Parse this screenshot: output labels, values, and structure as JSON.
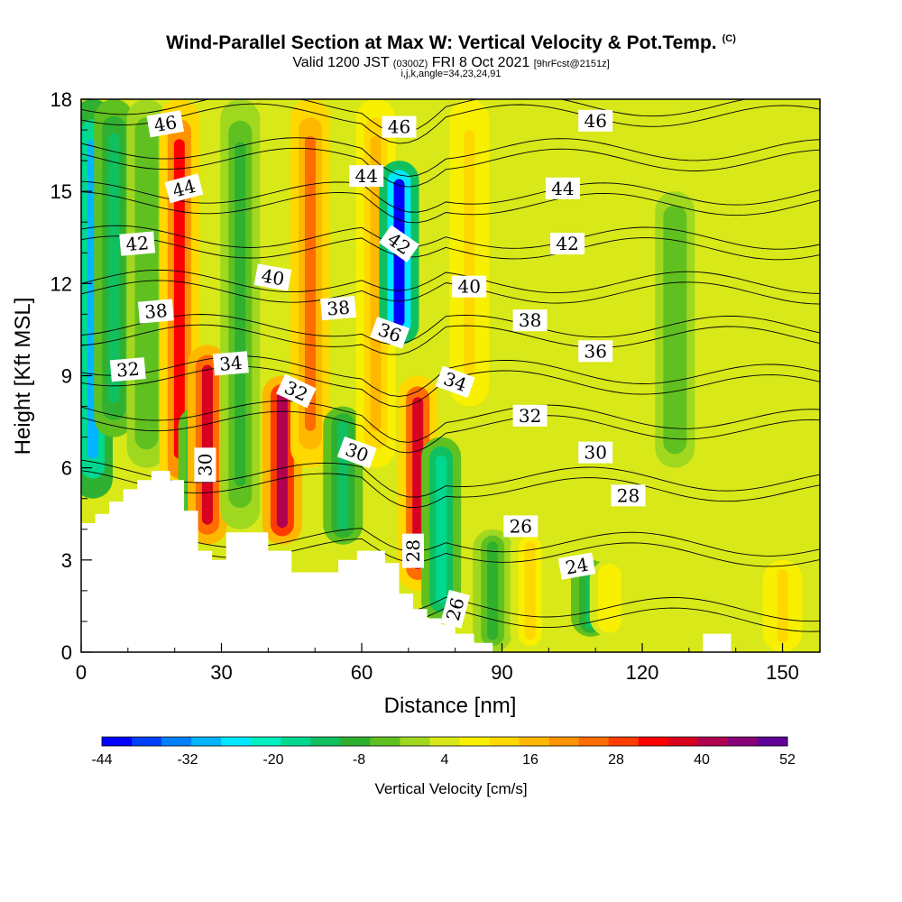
{
  "header": {
    "title": "Wind-Parallel Section at Max W: Vertical Velocity & Pot.Temp.",
    "title_mark": "(C)",
    "valid_prefix": "Valid 1200 JST",
    "utc": "(0300Z)",
    "valid_date": "FRI 8 Oct 2021",
    "forecast": "[9hrFcst@2151z]",
    "params": "i,j,k,angle=34,23,24,91"
  },
  "chart_data": {
    "type": "heatmap",
    "title": "Wind-Parallel Section at Max W: Vertical Velocity & Pot.Temp.",
    "xlabel": "Distance [nm]",
    "ylabel": "Height [Kft MSL]",
    "xlim": [
      0,
      158
    ],
    "ylim": [
      0,
      18
    ],
    "xticks": [
      0,
      30,
      60,
      90,
      120,
      150
    ],
    "yticks": [
      0,
      3,
      6,
      9,
      12,
      15,
      18
    ],
    "colorbar": {
      "label": "Vertical Velocity [cm/s]",
      "tick_labels": [
        "-44",
        "-32",
        "-20",
        "-8",
        "4",
        "16",
        "28",
        "40",
        "52"
      ],
      "colors": [
        "#0000ff",
        "#0040ff",
        "#0080ff",
        "#00b4ff",
        "#00e8ff",
        "#00f0c0",
        "#00d890",
        "#10c060",
        "#30b030",
        "#60c020",
        "#a0d820",
        "#d8e818",
        "#f8f000",
        "#ffd800",
        "#ffb800",
        "#ff9400",
        "#ff6c00",
        "#ff3c00",
        "#ff0000",
        "#d80020",
        "#b00050",
        "#880078",
        "#600098"
      ]
    },
    "background_w": 2,
    "velocity_features": [
      {
        "x": 2.5,
        "w": -30,
        "top": 18,
        "bottom": 5
      },
      {
        "x": 7,
        "w": -12,
        "top": 18,
        "bottom": 7
      },
      {
        "x": 14,
        "w": -6,
        "top": 18,
        "bottom": 6
      },
      {
        "x": 21,
        "w": 32,
        "top": 18,
        "bottom": 5
      },
      {
        "x": 25,
        "w": -22,
        "top": 8,
        "bottom": 4
      },
      {
        "x": 27,
        "w": 38,
        "top": 10,
        "bottom": 3.5
      },
      {
        "x": 34,
        "w": -10,
        "top": 18,
        "bottom": 4
      },
      {
        "x": 43,
        "w": 42,
        "top": 9,
        "bottom": 3.5
      },
      {
        "x": 49,
        "w": 26,
        "top": 18,
        "bottom": 6
      },
      {
        "x": 56,
        "w": -12,
        "top": 8,
        "bottom": 3.5
      },
      {
        "x": 63,
        "w": 16,
        "top": 18,
        "bottom": 6
      },
      {
        "x": 68,
        "w": -42,
        "top": 16,
        "bottom": 10
      },
      {
        "x": 72,
        "w": 36,
        "top": 9,
        "bottom": 2
      },
      {
        "x": 77,
        "w": -18,
        "top": 7,
        "bottom": 1
      },
      {
        "x": 83,
        "w": 14,
        "top": 18,
        "bottom": 8
      },
      {
        "x": 88,
        "w": -10,
        "top": 4,
        "bottom": 0
      },
      {
        "x": 96,
        "w": 12,
        "top": 4,
        "bottom": 0
      },
      {
        "x": 109,
        "w": -14,
        "top": 3,
        "bottom": 0.5
      },
      {
        "x": 113,
        "w": 10,
        "top": 3,
        "bottom": 0.5
      },
      {
        "x": 150,
        "w": 14,
        "top": 3,
        "bottom": 0
      },
      {
        "x": 127,
        "w": -6,
        "top": 15,
        "bottom": 6
      }
    ],
    "theta_levels": [
      24,
      26,
      28,
      30,
      32,
      34,
      36,
      38,
      40,
      42,
      44,
      46
    ],
    "theta_labels": [
      {
        "text": "46",
        "x": 18,
        "y": 17.2,
        "angle": -10
      },
      {
        "text": "46",
        "x": 68,
        "y": 17.1,
        "angle": 0
      },
      {
        "text": "46",
        "x": 110,
        "y": 17.3,
        "angle": 0
      },
      {
        "text": "44",
        "x": 22,
        "y": 15.1,
        "angle": -15
      },
      {
        "text": "44",
        "x": 61,
        "y": 15.5,
        "angle": 0
      },
      {
        "text": "44",
        "x": 103,
        "y": 15.1,
        "angle": 0
      },
      {
        "text": "42",
        "x": 12,
        "y": 13.3,
        "angle": -5
      },
      {
        "text": "42",
        "x": 68,
        "y": 13.3,
        "angle": 35
      },
      {
        "text": "42",
        "x": 104,
        "y": 13.3,
        "angle": 0
      },
      {
        "text": "40",
        "x": 41,
        "y": 12.2,
        "angle": 10
      },
      {
        "text": "40",
        "x": 83,
        "y": 11.9,
        "angle": 0
      },
      {
        "text": "38",
        "x": 16,
        "y": 11.1,
        "angle": -5
      },
      {
        "text": "38",
        "x": 55,
        "y": 11.2,
        "angle": -5
      },
      {
        "text": "38",
        "x": 96,
        "y": 10.8,
        "angle": 0
      },
      {
        "text": "36",
        "x": 66,
        "y": 10.4,
        "angle": 20
      },
      {
        "text": "36",
        "x": 110,
        "y": 9.8,
        "angle": 0
      },
      {
        "text": "34",
        "x": 32,
        "y": 9.4,
        "angle": -5
      },
      {
        "text": "34",
        "x": 80,
        "y": 8.8,
        "angle": 20
      },
      {
        "text": "32",
        "x": 10,
        "y": 9.2,
        "angle": -5
      },
      {
        "text": "32",
        "x": 46,
        "y": 8.5,
        "angle": 25
      },
      {
        "text": "32",
        "x": 96,
        "y": 7.7,
        "angle": 0
      },
      {
        "text": "30",
        "x": 26.5,
        "y": 6.1,
        "angle": -90
      },
      {
        "text": "30",
        "x": 59,
        "y": 6.5,
        "angle": 20
      },
      {
        "text": "30",
        "x": 110,
        "y": 6.5,
        "angle": 0
      },
      {
        "text": "28",
        "x": 117,
        "y": 5.1,
        "angle": 0
      },
      {
        "text": "28",
        "x": 71,
        "y": 3.3,
        "angle": -90
      },
      {
        "text": "26",
        "x": 94,
        "y": 4.1,
        "angle": 0
      },
      {
        "text": "26",
        "x": 80,
        "y": 1.4,
        "angle": -75
      },
      {
        "text": "24",
        "x": 106,
        "y": 2.8,
        "angle": -10
      }
    ],
    "terrain": [
      [
        0,
        4.2
      ],
      [
        3,
        4.2
      ],
      [
        3,
        4.5
      ],
      [
        6,
        4.5
      ],
      [
        6,
        4.9
      ],
      [
        9,
        4.9
      ],
      [
        9,
        5.3
      ],
      [
        12,
        5.3
      ],
      [
        12,
        5.6
      ],
      [
        15,
        5.6
      ],
      [
        15,
        5.9
      ],
      [
        19,
        5.9
      ],
      [
        19,
        5.6
      ],
      [
        22,
        5.6
      ],
      [
        22,
        4.6
      ],
      [
        25,
        4.6
      ],
      [
        25,
        3.3
      ],
      [
        28,
        3.3
      ],
      [
        28,
        3.0
      ],
      [
        31,
        3.0
      ],
      [
        31,
        3.9
      ],
      [
        40,
        3.9
      ],
      [
        40,
        3.3
      ],
      [
        45,
        3.3
      ],
      [
        45,
        2.6
      ],
      [
        55,
        2.6
      ],
      [
        55,
        3.0
      ],
      [
        59,
        3.0
      ],
      [
        59,
        3.3
      ],
      [
        65,
        3.3
      ],
      [
        65,
        2.9
      ],
      [
        68,
        2.9
      ],
      [
        68,
        1.9
      ],
      [
        71,
        1.9
      ],
      [
        71,
        1.4
      ],
      [
        74,
        1.4
      ],
      [
        74,
        1.1
      ],
      [
        77,
        1.1
      ],
      [
        77,
        0.9
      ],
      [
        80,
        0.9
      ],
      [
        80,
        0.6
      ],
      [
        84,
        0.6
      ],
      [
        84,
        0.3
      ],
      [
        88,
        0.3
      ],
      [
        88,
        0
      ],
      [
        133,
        0
      ],
      [
        133,
        0.6
      ],
      [
        139,
        0.6
      ],
      [
        139,
        0
      ],
      [
        158,
        0
      ]
    ]
  }
}
